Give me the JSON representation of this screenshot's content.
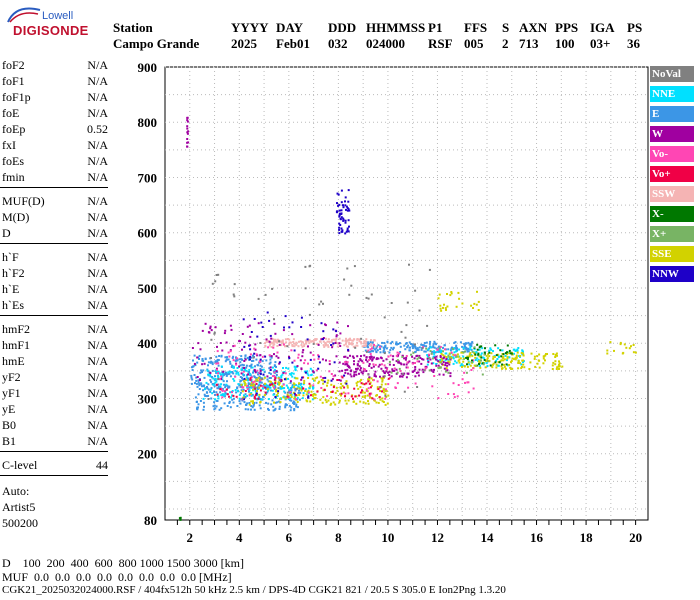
{
  "logo": {
    "line1": "Lowell",
    "line2": "DIGISONDE"
  },
  "header": {
    "labels": [
      "Station",
      "YYYY",
      "DAY",
      "DDD",
      "HHMMSS",
      "P1",
      "FFS",
      "S",
      "AXN",
      "PPS",
      "IGA",
      "PS"
    ],
    "values": [
      "Campo Grande",
      "2025",
      "Feb01",
      "032",
      "024000",
      "RSF",
      "005",
      "2",
      "713",
      "100",
      "03+",
      "36"
    ]
  },
  "params": {
    "group1": [
      {
        "name": "foF2",
        "value": "N/A"
      },
      {
        "name": "foF1",
        "value": "N/A"
      },
      {
        "name": "foF1p",
        "value": "N/A"
      },
      {
        "name": "foE",
        "value": "N/A"
      },
      {
        "name": "foEp",
        "value": "0.52"
      },
      {
        "name": "fxI",
        "value": "N/A"
      },
      {
        "name": "foEs",
        "value": "N/A"
      },
      {
        "name": "fmin",
        "value": "N/A"
      }
    ],
    "group2": [
      {
        "name": "MUF(D)",
        "value": "N/A"
      },
      {
        "name": "M(D)",
        "value": "N/A"
      },
      {
        "name": "D",
        "value": "N/A"
      }
    ],
    "group3": [
      {
        "name": "h`F",
        "value": "N/A"
      },
      {
        "name": "h`F2",
        "value": "N/A"
      },
      {
        "name": "h`E",
        "value": "N/A"
      },
      {
        "name": "h`Es",
        "value": "N/A"
      }
    ],
    "group4": [
      {
        "name": "hmF2",
        "value": "N/A"
      },
      {
        "name": "hmF1",
        "value": "N/A"
      },
      {
        "name": "hmE",
        "value": "N/A"
      },
      {
        "name": "yF2",
        "value": "N/A"
      },
      {
        "name": "yF1",
        "value": "N/A"
      },
      {
        "name": "yE",
        "value": "N/A"
      },
      {
        "name": "B0",
        "value": "N/A"
      },
      {
        "name": "B1",
        "value": "N/A"
      }
    ],
    "clevel": {
      "name": "C-level",
      "value": "44"
    },
    "auto": {
      "line1": "Auto:",
      "line2": "Artist5",
      "line3": "500200"
    }
  },
  "legend": [
    {
      "label": "NoVal",
      "color": "#808080"
    },
    {
      "label": "NNE",
      "color": "#00e0ff"
    },
    {
      "label": "E",
      "color": "#3c96e6"
    },
    {
      "label": "W",
      "color": "#a000a0"
    },
    {
      "label": "Vo-",
      "color": "#ff46b4"
    },
    {
      "label": "Vo+",
      "color": "#f00046"
    },
    {
      "label": "SSW",
      "color": "#f5b4b4"
    },
    {
      "label": "X-",
      "color": "#007800"
    },
    {
      "label": "X+",
      "color": "#78b464"
    },
    {
      "label": "SSE",
      "color": "#d2d200"
    },
    {
      "label": "NNW",
      "color": "#1e00c8"
    }
  ],
  "footer": {
    "d_line": "D    100  200  400  600  800 1000 1500 3000 [km]",
    "muf_line": "MUF  0.0  0.0  0.0  0.0  0.0  0.0  0.0  0.0 [MHz]",
    "file_line": "CGK21_2025032024000.RSF / 404fx512h 50 kHz 2.5 km / DPS-4D CGK21 821 / 20.5 S 305.0 E Ion2Png 1.3.20"
  },
  "chart_data": {
    "type": "scatter",
    "title": "",
    "xlabel": "",
    "ylabel": "",
    "xlim": [
      1,
      20.5
    ],
    "ylim": [
      80,
      900
    ],
    "x_ticks": [
      2,
      4,
      6,
      8,
      10,
      12,
      14,
      16,
      18,
      20
    ],
    "y_ticks": [
      80,
      200,
      300,
      400,
      500,
      600,
      700,
      800,
      900
    ],
    "grid": "dotted",
    "clusters": [
      {
        "label": "E",
        "x_range": [
          2.0,
          5.5
        ],
        "y_range": [
          320,
          380
        ],
        "n": 260
      },
      {
        "label": "E",
        "x_range": [
          2.2,
          6.5
        ],
        "y_range": [
          280,
          330
        ],
        "n": 200
      },
      {
        "label": "E",
        "x_range": [
          9.0,
          13.5
        ],
        "y_range": [
          385,
          405
        ],
        "n": 180
      },
      {
        "label": "NNE",
        "x_range": [
          2.5,
          7.0
        ],
        "y_range": [
          300,
          360
        ],
        "n": 200
      },
      {
        "label": "NNE",
        "x_range": [
          11.5,
          15.5
        ],
        "y_range": [
          360,
          395
        ],
        "n": 120
      },
      {
        "label": "SSW",
        "x_range": [
          5.0,
          9.5
        ],
        "y_range": [
          395,
          410
        ],
        "n": 170
      },
      {
        "label": "SSE",
        "x_range": [
          4.0,
          10.0
        ],
        "y_range": [
          290,
          340
        ],
        "n": 220
      },
      {
        "label": "SSE",
        "x_range": [
          12.0,
          17.0
        ],
        "y_range": [
          355,
          385
        ],
        "n": 170
      },
      {
        "label": "SSE",
        "x_range": [
          12.0,
          13.8
        ],
        "y_range": [
          460,
          495
        ],
        "n": 25
      },
      {
        "label": "SSE",
        "x_range": [
          18.7,
          20.0
        ],
        "y_range": [
          380,
          405
        ],
        "n": 15
      },
      {
        "label": "W",
        "x_range": [
          8.0,
          12.5
        ],
        "y_range": [
          340,
          380
        ],
        "n": 200
      },
      {
        "label": "W",
        "x_range": [
          2.0,
          8.5
        ],
        "y_range": [
          330,
          440
        ],
        "n": 120
      },
      {
        "label": "Vo-",
        "x_range": [
          3.0,
          13.5
        ],
        "y_range": [
          300,
          400
        ],
        "n": 160
      },
      {
        "label": "Vo+",
        "x_range": [
          3.0,
          10.0
        ],
        "y_range": [
          300,
          340
        ],
        "n": 60
      },
      {
        "label": "NNW",
        "x_range": [
          7.9,
          8.4
        ],
        "y_range": [
          600,
          680
        ],
        "n": 55
      },
      {
        "label": "NNW",
        "x_range": [
          4.0,
          8.5
        ],
        "y_range": [
          300,
          460
        ],
        "n": 60
      },
      {
        "label": "X-",
        "x_range": [
          13.0,
          15.0
        ],
        "y_range": [
          360,
          400
        ],
        "n": 40
      },
      {
        "label": "X+",
        "x_range": [
          10.0,
          14.0
        ],
        "y_range": [
          345,
          395
        ],
        "n": 40
      },
      {
        "label": "NoVal",
        "x_range": [
          2.5,
          12.0
        ],
        "y_range": [
          300,
          560
        ],
        "n": 70
      },
      {
        "label": "W",
        "x_range": [
          1.85,
          1.9
        ],
        "y_range": [
          740,
          810
        ],
        "n": 14
      },
      {
        "label": "X-",
        "x_range": [
          1.55,
          1.65
        ],
        "y_range": [
          82,
          86
        ],
        "n": 4
      }
    ]
  }
}
